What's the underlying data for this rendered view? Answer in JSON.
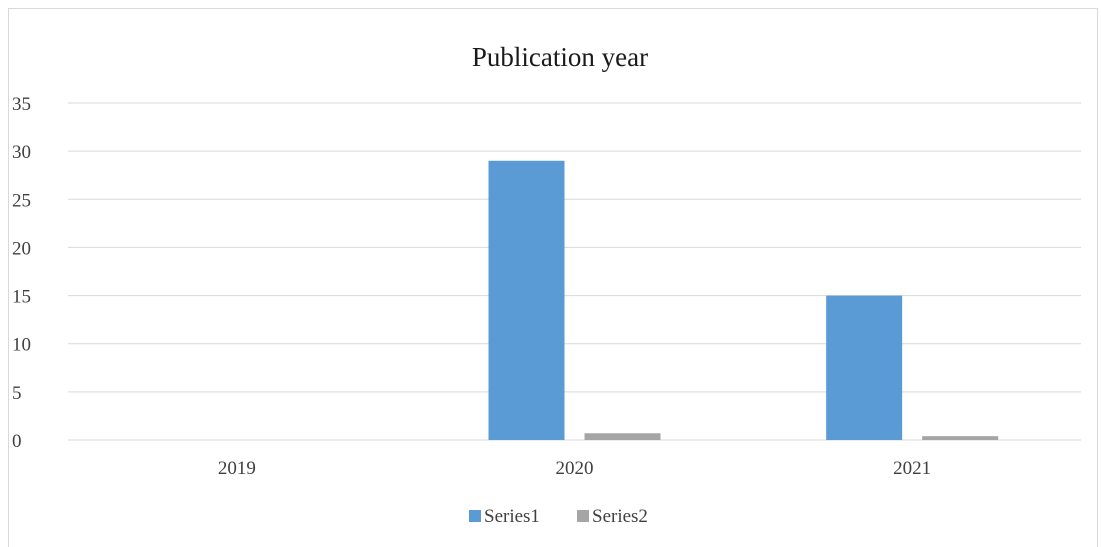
{
  "chart_data": {
    "type": "bar",
    "title": "Publication year",
    "xlabel": "",
    "ylabel": "",
    "categories": [
      "2019",
      "2020",
      "2021"
    ],
    "series": [
      {
        "name": "Series1",
        "values": [
          0,
          29,
          15
        ],
        "color": "#5b9bd5"
      },
      {
        "name": "Series2",
        "values": [
          0,
          0.7,
          0.4
        ],
        "color": "#a5a5a5"
      }
    ],
    "ylim": [
      0,
      35
    ],
    "yticks": [
      "0",
      "5",
      "10",
      "15",
      "20",
      "25",
      "30",
      "35"
    ],
    "grid": true,
    "legend_position": "bottom",
    "colors": {
      "grid": "#d9d9d9",
      "axis": "#d9d9d9",
      "text": "#404040"
    }
  }
}
